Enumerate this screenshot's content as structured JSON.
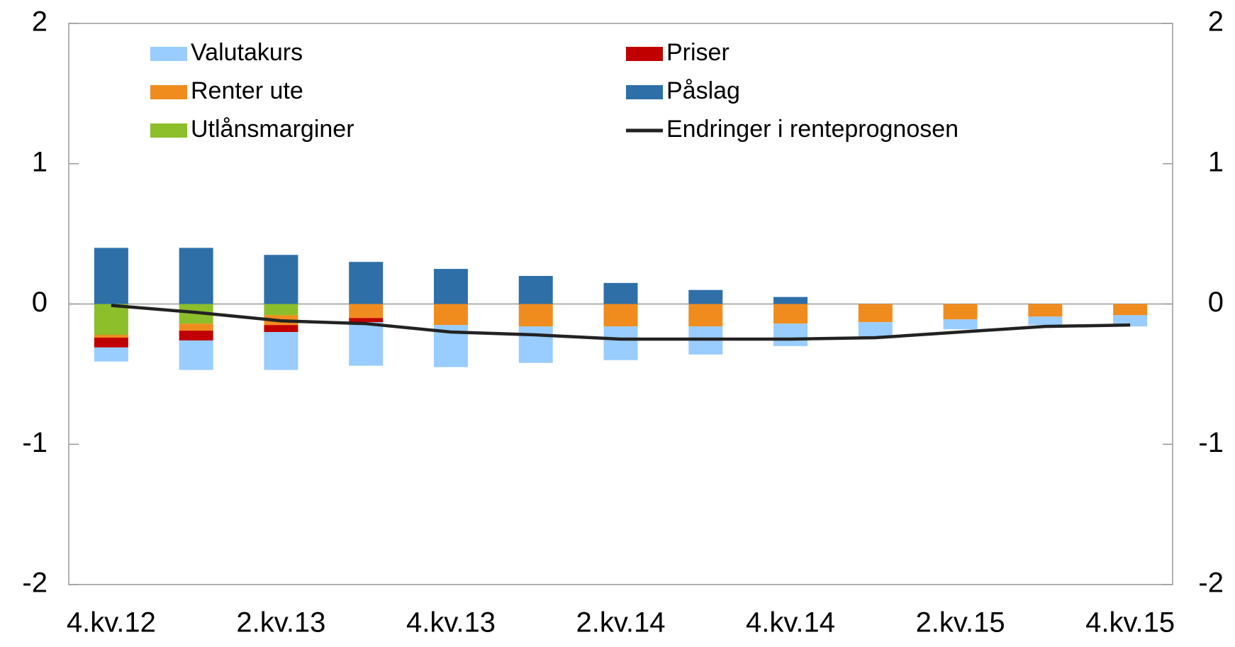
{
  "chart_data": {
    "type": "bar",
    "categories": [
      "4.kv.12",
      null,
      "2.kv.13",
      null,
      "4.kv.13",
      null,
      "2.kv.14",
      null,
      "4.kv.14",
      null,
      "2.kv.15",
      null,
      "4.kv.15"
    ],
    "series": [
      {
        "name": "Valutakurs",
        "color": "#99ccff",
        "values": [
          -0.1,
          -0.21,
          -0.27,
          -0.31,
          -0.3,
          -0.26,
          -0.24,
          -0.2,
          -0.16,
          -0.1,
          -0.07,
          -0.06,
          -0.08
        ]
      },
      {
        "name": "Priser",
        "color": "#c00000",
        "values": [
          -0.07,
          -0.07,
          -0.05,
          -0.03,
          0,
          0,
          0,
          0,
          0,
          0,
          0,
          0,
          0
        ]
      },
      {
        "name": "Renter ute",
        "color": "#f08c1e",
        "values": [
          -0.02,
          -0.05,
          -0.07,
          -0.1,
          -0.15,
          -0.16,
          -0.16,
          -0.16,
          -0.14,
          -0.13,
          -0.11,
          -0.09,
          -0.08
        ]
      },
      {
        "name": "Påslag",
        "color": "#2e6fa8",
        "values": [
          0.4,
          0.4,
          0.35,
          0.3,
          0.25,
          0.2,
          0.15,
          0.1,
          0.05,
          0,
          0,
          0,
          0
        ]
      },
      {
        "name": "Utlånsmarginer",
        "color": "#8cbf2a",
        "values": [
          -0.22,
          -0.14,
          -0.08,
          0,
          0,
          0,
          0,
          0,
          0,
          0,
          0,
          0,
          0
        ]
      },
      {
        "name": "Endringer i renteprognosen",
        "type": "line",
        "color": "#222222",
        "values": [
          -0.01,
          -0.06,
          -0.12,
          -0.14,
          -0.2,
          -0.22,
          -0.25,
          -0.25,
          -0.25,
          -0.24,
          -0.2,
          -0.16,
          -0.15
        ]
      }
    ],
    "ylim": [
      -2,
      2
    ],
    "yticks": [
      -2,
      -1,
      0,
      1,
      2
    ],
    "y2lim": [
      -2,
      2
    ],
    "y2ticks": [
      -2,
      -1,
      0,
      1,
      2
    ]
  }
}
